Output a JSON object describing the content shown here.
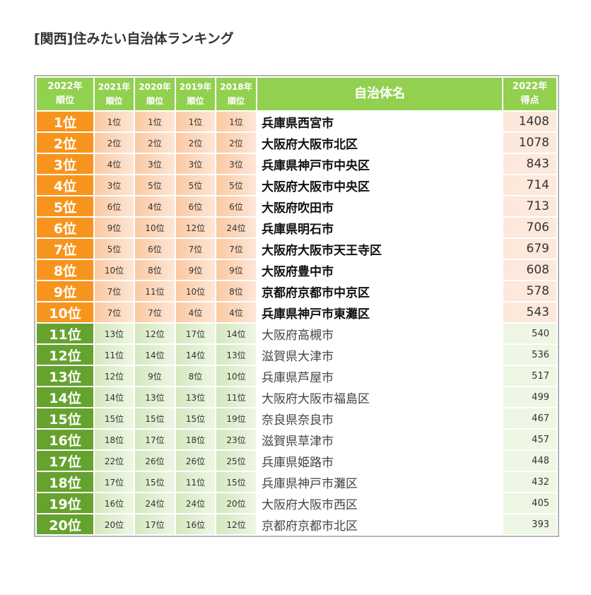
{
  "title": "[関西]住みたい自治体ランキング",
  "table": {
    "header": [
      [
        "2022年",
        "順位"
      ],
      [
        "2021年",
        "順位"
      ],
      [
        "2020年",
        "順位"
      ],
      [
        "2019年",
        "順位"
      ],
      [
        "2018年",
        "順位"
      ],
      [
        "自治体名"
      ],
      [
        "2022年",
        "得点"
      ]
    ],
    "rows": [
      [
        "1位",
        "1位",
        "1位",
        "1位",
        "1位",
        "兵庫県西宮市",
        "1408"
      ],
      [
        "2位",
        "2位",
        "2位",
        "2位",
        "2位",
        "大阪府大阪市北区",
        "1078"
      ],
      [
        "3位",
        "4位",
        "3位",
        "3位",
        "3位",
        "兵庫県神戸市中央区",
        "843"
      ],
      [
        "4位",
        "3位",
        "5位",
        "5位",
        "5位",
        "大阪府大阪市中央区",
        "714"
      ],
      [
        "5位",
        "6位",
        "4位",
        "6位",
        "6位",
        "大阪府吹田市",
        "713"
      ],
      [
        "6位",
        "9位",
        "10位",
        "12位",
        "24位",
        "兵庫県明石市",
        "706"
      ],
      [
        "7位",
        "5位",
        "6位",
        "7位",
        "7位",
        "大阪府大阪市天王寺区",
        "679"
      ],
      [
        "8位",
        "10位",
        "8位",
        "9位",
        "9位",
        "大阪府豊中市",
        "608"
      ],
      [
        "9位",
        "7位",
        "11位",
        "10位",
        "8位",
        "京都府京都市中京区",
        "578"
      ],
      [
        "10位",
        "7位",
        "7位",
        "4位",
        "4位",
        "兵庫県神戸市東灘区",
        "543"
      ],
      [
        "11位",
        "13位",
        "12位",
        "17位",
        "14位",
        "大阪府高槻市",
        "540"
      ],
      [
        "12位",
        "11位",
        "14位",
        "14位",
        "13位",
        "滋賀県大津市",
        "536"
      ],
      [
        "13位",
        "12位",
        "9位",
        "8位",
        "10位",
        "兵庫県芦屋市",
        "517"
      ],
      [
        "14位",
        "14位",
        "13位",
        "13位",
        "11位",
        "大阪府大阪市福島区",
        "499"
      ],
      [
        "15位",
        "15位",
        "15位",
        "15位",
        "19位",
        "奈良県奈良市",
        "467"
      ],
      [
        "16位",
        "18位",
        "17位",
        "18位",
        "23位",
        "滋賀県草津市",
        "457"
      ],
      [
        "17位",
        "22位",
        "26位",
        "26位",
        "25位",
        "兵庫県姫路市",
        "448"
      ],
      [
        "18位",
        "17位",
        "15位",
        "11位",
        "15位",
        "兵庫県神戸市灘区",
        "432"
      ],
      [
        "19位",
        "16位",
        "24位",
        "24位",
        "20位",
        "大阪府大阪市西区",
        "405"
      ],
      [
        "20位",
        "20位",
        "17位",
        "16位",
        "12位",
        "京都府京都市北区",
        "393"
      ]
    ]
  }
}
